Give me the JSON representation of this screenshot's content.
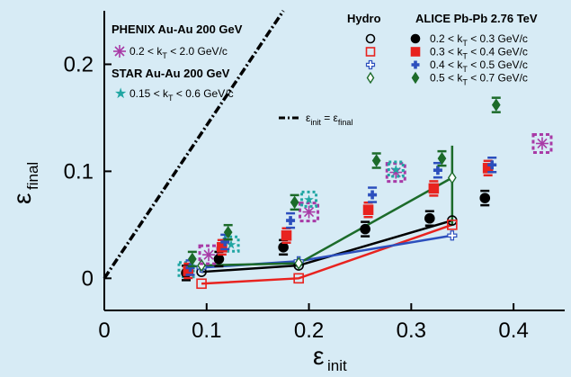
{
  "chart_data": {
    "type": "scatter",
    "xlabel": "ε",
    "xlabel_sub": "init",
    "ylabel": "ε",
    "ylabel_sub": "final",
    "xlim": [
      0,
      0.45
    ],
    "ylim": [
      -0.03,
      0.25
    ],
    "xticks": [
      0,
      0.1,
      0.2,
      0.3,
      0.4
    ],
    "yticks": [
      0,
      0.1,
      0.2
    ],
    "xtick_labels": [
      "0",
      "0.1",
      "0.2",
      "0.3",
      "0.4"
    ],
    "ytick_labels": [
      "0",
      "0.1",
      "0.2"
    ],
    "grid": false,
    "legend_left": {
      "phenix_title": "PHENIX Au-Au 200 GeV",
      "phenix_range": "0.2 < k",
      "phenix_range_tail": " < 2.0 GeV/c",
      "star_title": "STAR Au-Au 200 GeV",
      "star_range": "0.15 < k",
      "star_range_tail": " < 0.6 GeV/c",
      "k_subscript": "T"
    },
    "legend_right": {
      "hydro_title": "Hydro",
      "alice_title": "ALICE Pb-Pb 2.76 TeV",
      "k_subscript": "T",
      "entries": [
        {
          "head": "0.2 < k",
          "tail": " < 0.3 GeV/c",
          "color": "#000000",
          "marker": "circle"
        },
        {
          "head": "0.3 < k",
          "tail": " < 0.4 GeV/c",
          "color": "#e8231f",
          "marker": "square"
        },
        {
          "head": "0.4 < k",
          "tail": " < 0.5 GeV/c",
          "color": "#2c4fbd",
          "marker": "plus"
        },
        {
          "head": "0.5 < k",
          "tail": " < 0.7 GeV/c",
          "color": "#1c6b2a",
          "marker": "diamond"
        }
      ]
    },
    "diagonal": {
      "label_main": "ε",
      "label_sub_init": "init",
      "label_eq": " = ε",
      "label_sub_final": "final",
      "from": [
        0,
        0
      ],
      "to": [
        0.175,
        0.25
      ]
    },
    "alice_series": [
      {
        "name": "0.2<kT<0.3",
        "color": "#000000",
        "marker": "circle",
        "points": [
          [
            0.08,
            0.005
          ],
          [
            0.112,
            0.018
          ],
          [
            0.175,
            0.029
          ],
          [
            0.255,
            0.046
          ],
          [
            0.318,
            0.056
          ],
          [
            0.372,
            0.075
          ]
        ]
      },
      {
        "name": "0.3<kT<0.4",
        "color": "#e8231f",
        "marker": "square",
        "points": [
          [
            0.082,
            0.007
          ],
          [
            0.115,
            0.029
          ],
          [
            0.178,
            0.04
          ],
          [
            0.258,
            0.064
          ],
          [
            0.322,
            0.084
          ],
          [
            0.375,
            0.103
          ]
        ]
      },
      {
        "name": "0.4<kT<0.5",
        "color": "#2c4fbd",
        "marker": "plus",
        "points": [
          [
            0.084,
            0.01
          ],
          [
            0.118,
            0.034
          ],
          [
            0.182,
            0.054
          ],
          [
            0.262,
            0.078
          ],
          [
            0.326,
            0.101
          ],
          [
            0.379,
            0.106
          ]
        ]
      },
      {
        "name": "0.5<kT<0.7",
        "color": "#1c6b2a",
        "marker": "diamond",
        "points": [
          [
            0.086,
            0.018
          ],
          [
            0.121,
            0.043
          ],
          [
            0.186,
            0.071
          ],
          [
            0.266,
            0.11
          ],
          [
            0.33,
            0.112
          ],
          [
            0.383,
            0.162
          ]
        ]
      }
    ],
    "phenix_points": {
      "color": "#a83aa6",
      "points": [
        [
          0.102,
          0.022
        ],
        [
          0.2,
          0.062
        ],
        [
          0.285,
          0.099
        ],
        [
          0.428,
          0.126
        ]
      ]
    },
    "star_points": {
      "color": "#21a6a3",
      "points": [
        [
          0.08,
          0.008
        ],
        [
          0.124,
          0.032
        ],
        [
          0.2,
          0.074
        ],
        [
          0.285,
          0.102
        ]
      ]
    },
    "hydro_lines": [
      {
        "color": "#000000",
        "marker": "circle",
        "points": [
          [
            0.095,
            0.006
          ],
          [
            0.19,
            0.012
          ],
          [
            0.34,
            0.054
          ]
        ]
      },
      {
        "color": "#e8231f",
        "marker": "square",
        "points": [
          [
            0.095,
            -0.005
          ],
          [
            0.19,
            0.0
          ],
          [
            0.34,
            0.05
          ]
        ]
      },
      {
        "color": "#2c4fbd",
        "marker": "plus",
        "points": [
          [
            0.095,
            0.01
          ],
          [
            0.19,
            0.016
          ],
          [
            0.34,
            0.04
          ]
        ]
      },
      {
        "color": "#1c6b2a",
        "marker": "diamond",
        "points": [
          [
            0.095,
            0.012
          ],
          [
            0.19,
            0.014
          ],
          [
            0.34,
            0.094
          ]
        ]
      }
    ],
    "hydro_errorbars": [
      {
        "x": 0.34,
        "ylo": 0.05,
        "yhi": 0.124,
        "color": "#1c6b2a"
      }
    ]
  }
}
